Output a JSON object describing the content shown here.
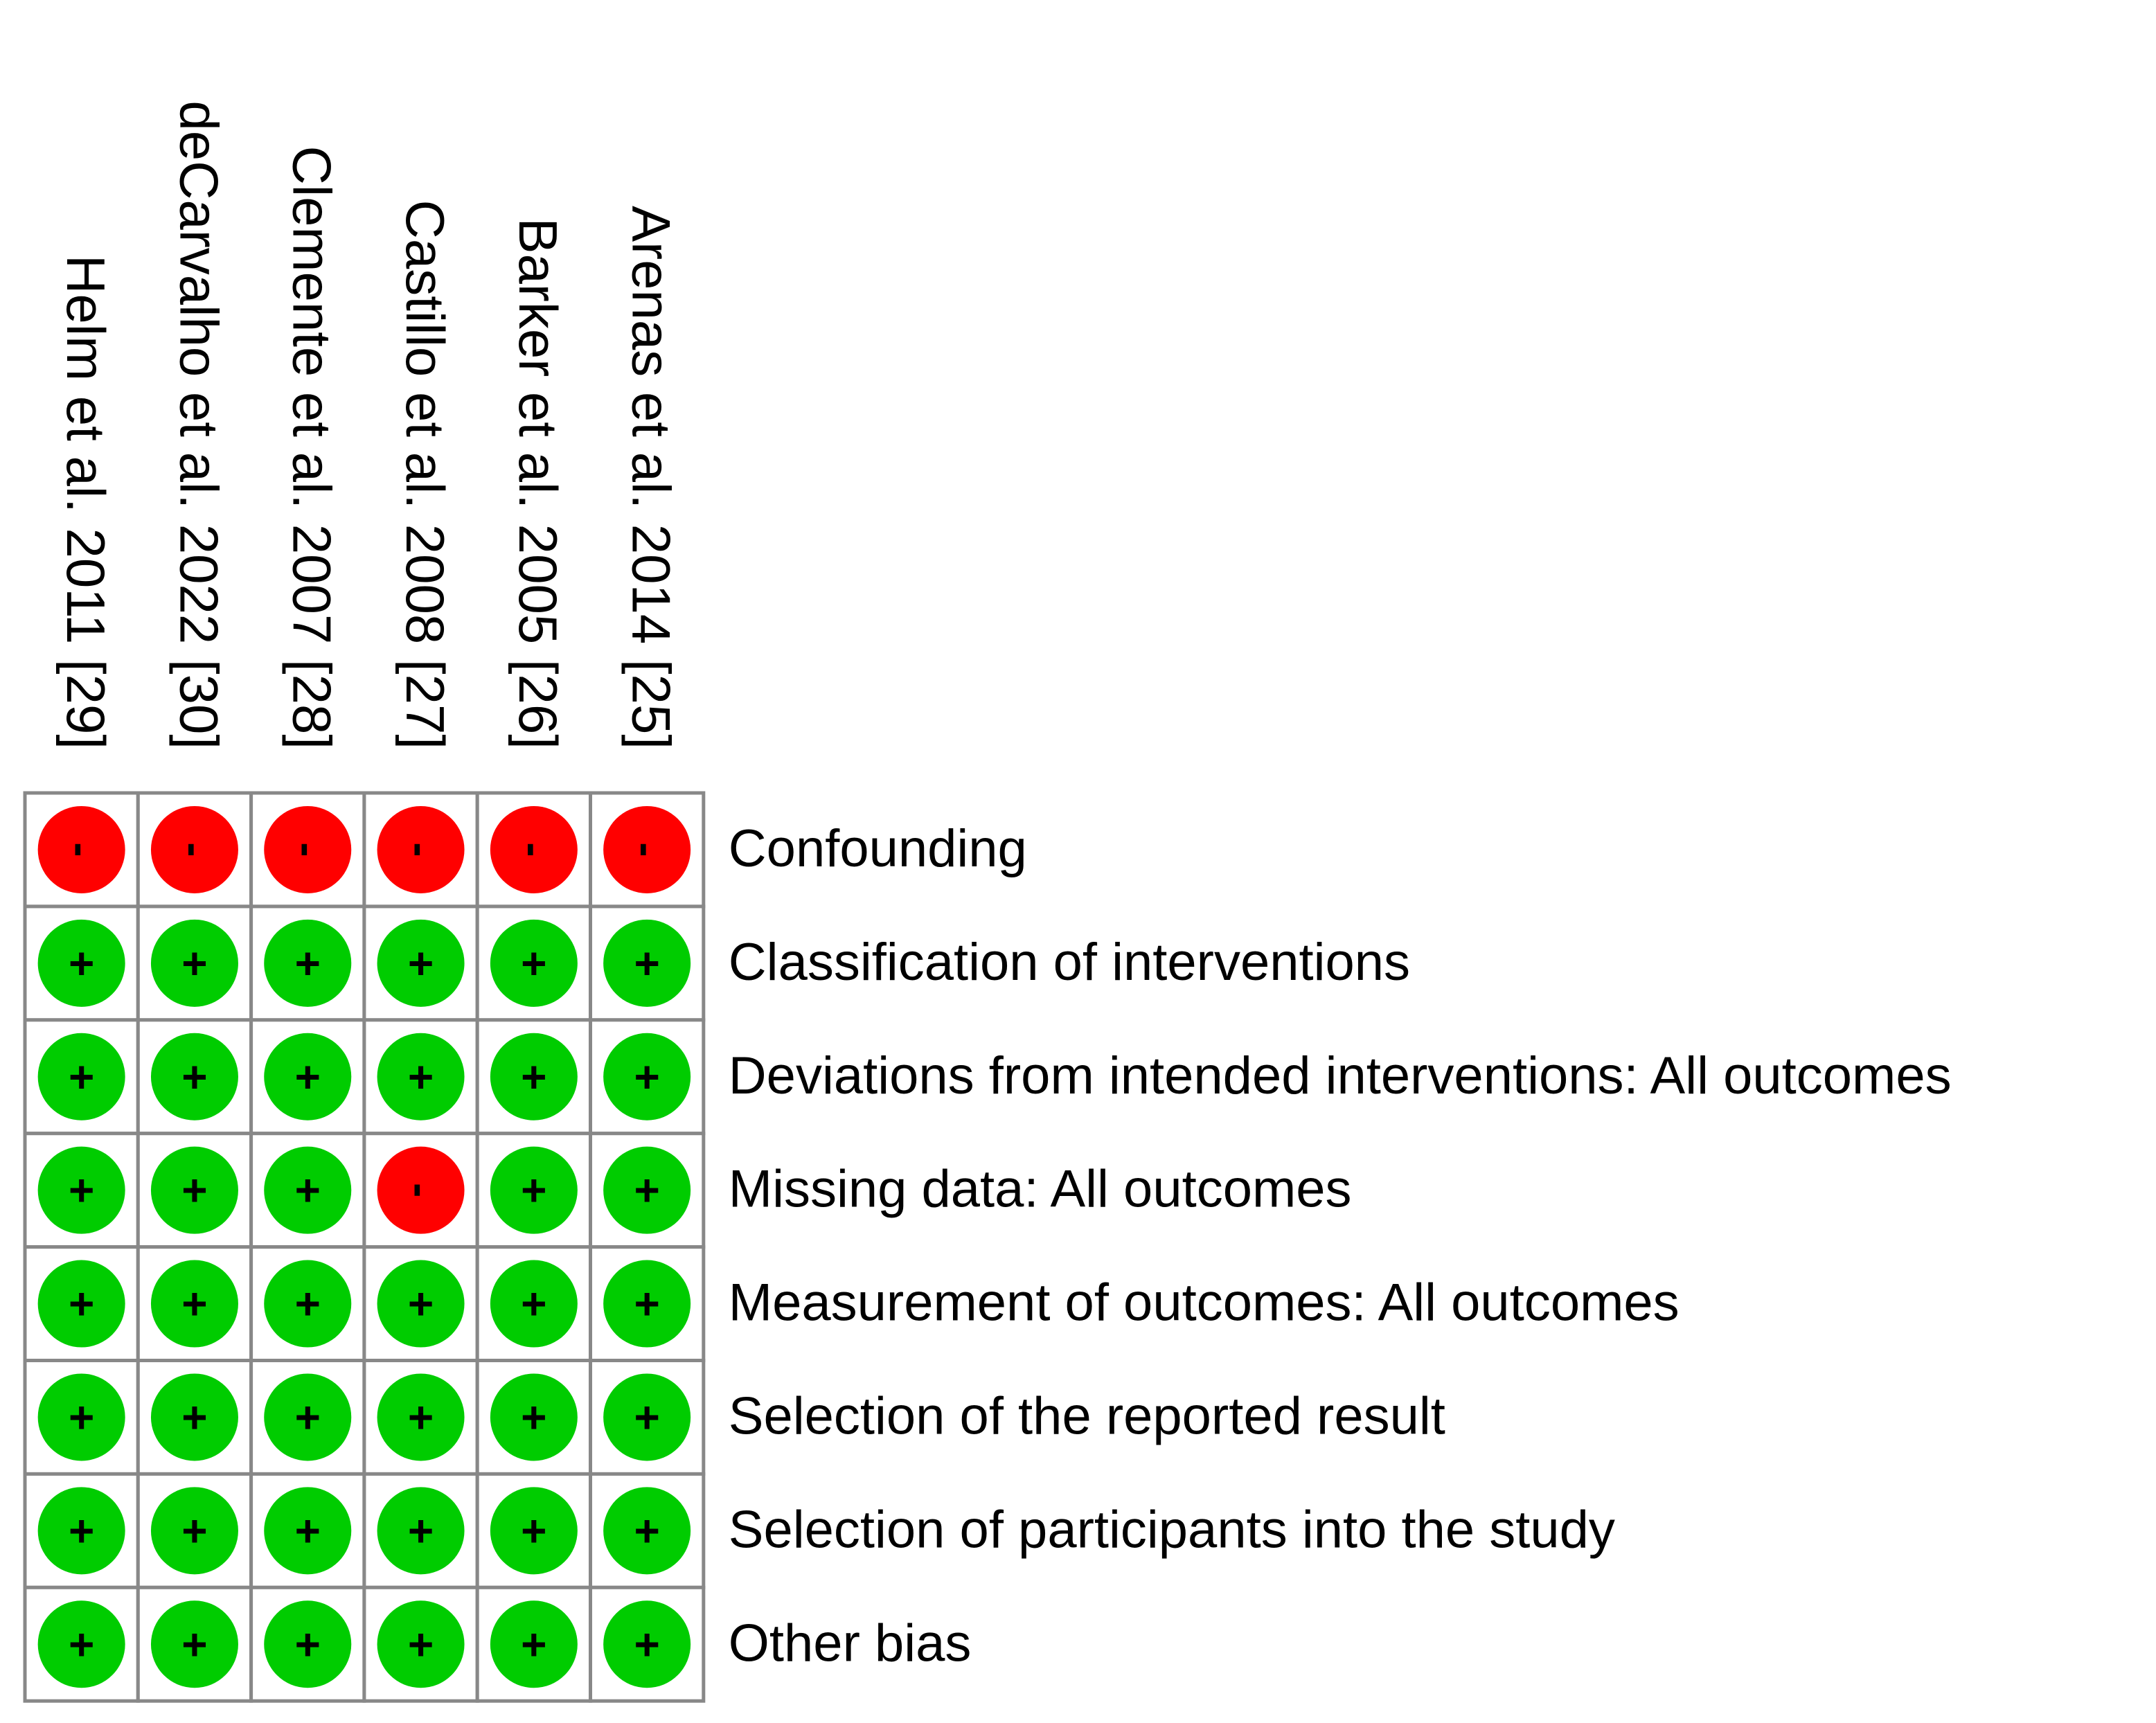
{
  "columns": [
    "Helm et al. 2011 [29]",
    "deCarvalho et al. 2022 [30]",
    "Clemente et al. 2007 [28]",
    "Castillo et al. 2008 [27]",
    "Barker et al. 2005 [26]",
    "Arenas et al. 2014 [25]"
  ],
  "rows": [
    {
      "label": "Confounding",
      "cells": [
        "-",
        "-",
        "-",
        "-",
        "-",
        "-"
      ]
    },
    {
      "label": "Classification of interventions",
      "cells": [
        "+",
        "+",
        "+",
        "+",
        "+",
        "+"
      ]
    },
    {
      "label": "Deviations from intended interventions: All outcomes",
      "cells": [
        "+",
        "+",
        "+",
        "+",
        "+",
        "+"
      ]
    },
    {
      "label": "Missing data: All outcomes",
      "cells": [
        "+",
        "+",
        "+",
        "-",
        "+",
        "+"
      ]
    },
    {
      "label": "Measurement of outcomes: All outcomes",
      "cells": [
        "+",
        "+",
        "+",
        "+",
        "+",
        "+"
      ]
    },
    {
      "label": "Selection of the reported result",
      "cells": [
        "+",
        "+",
        "+",
        "+",
        "+",
        "+"
      ]
    },
    {
      "label": "Selection of participants into the study",
      "cells": [
        "+",
        "+",
        "+",
        "+",
        "+",
        "+"
      ]
    },
    {
      "label": "Other bias",
      "cells": [
        "+",
        "+",
        "+",
        "+",
        "+",
        "+"
      ]
    }
  ]
}
